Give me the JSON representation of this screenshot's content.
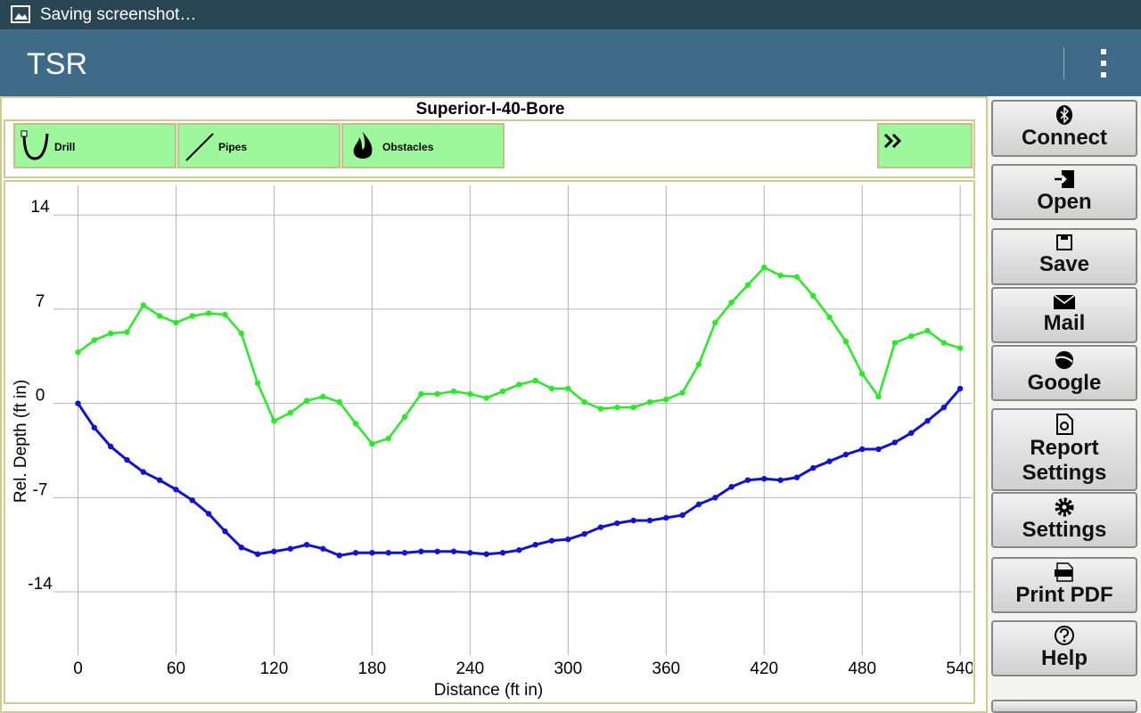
{
  "status_bar": {
    "text": "Saving screenshot…"
  },
  "app_bar": {
    "title": "TSR"
  },
  "project": {
    "title": "Superior-I-40-Bore"
  },
  "toolbar": {
    "buttons": [
      "Drill",
      "Pipes",
      "Obstacles"
    ]
  },
  "side_buttons": [
    "Connect",
    "Open",
    "Save",
    "Mail",
    "Google",
    "Report Settings",
    "Settings",
    "Print PDF",
    "Help"
  ],
  "chart_data": {
    "type": "line",
    "x_label": "Distance (ft in)",
    "y_label": "Rel. Depth (ft in)",
    "x": [
      0,
      10,
      20,
      30,
      40,
      50,
      60,
      70,
      80,
      90,
      100,
      110,
      120,
      130,
      140,
      150,
      160,
      170,
      180,
      190,
      200,
      210,
      220,
      230,
      240,
      250,
      260,
      270,
      280,
      290,
      300,
      310,
      320,
      330,
      340,
      350,
      360,
      370,
      380,
      390,
      400,
      410,
      420,
      430,
      440,
      450,
      460,
      470,
      480,
      490,
      500,
      510,
      520,
      530,
      540
    ],
    "series": [
      {
        "color": "#22ee22",
        "values": [
          3.8,
          4.7,
          5.2,
          5.3,
          7.3,
          6.5,
          6.0,
          6.5,
          6.7,
          6.6,
          5.2,
          1.5,
          -1.3,
          -0.7,
          0.2,
          0.5,
          0.1,
          -1.5,
          -3.0,
          -2.6,
          -1.0,
          0.7,
          0.7,
          0.9,
          0.7,
          0.4,
          0.9,
          1.4,
          1.7,
          1.1,
          1.1,
          0.1,
          -0.4,
          -0.3,
          -0.3,
          0.1,
          0.3,
          0.8,
          2.9,
          6.0,
          7.5,
          8.8,
          10.1,
          9.5,
          9.4,
          8.0,
          6.4,
          4.6,
          2.2,
          0.5,
          4.5,
          5.0,
          5.4,
          4.5,
          4.1
        ]
      },
      {
        "color": "#1111dd",
        "values": [
          0,
          -1.8,
          -3.2,
          -4.2,
          -5.1,
          -5.7,
          -6.4,
          -7.2,
          -8.2,
          -9.5,
          -10.7,
          -11.2,
          -11.0,
          -10.8,
          -10.5,
          -10.8,
          -11.3,
          -11.1,
          -11.1,
          -11.1,
          -11.1,
          -11.0,
          -11.0,
          -11.0,
          -11.1,
          -11.2,
          -11.1,
          -10.9,
          -10.5,
          -10.2,
          -10.1,
          -9.7,
          -9.2,
          -8.9,
          -8.7,
          -8.7,
          -8.5,
          -8.3,
          -7.5,
          -7.0,
          -6.2,
          -5.7,
          -5.6,
          -5.7,
          -5.5,
          -4.8,
          -4.3,
          -3.8,
          -3.4,
          -3.4,
          -2.9,
          -2.2,
          -1.3,
          -0.3,
          1.1
        ]
      }
    ],
    "xlim": [
      -15,
      547
    ],
    "xticks": [
      0,
      60,
      120,
      180,
      240,
      300,
      360,
      420,
      480,
      540
    ],
    "ylim": [
      -18.7,
      16.2
    ],
    "yticks": [
      14,
      7,
      0,
      -7,
      -14
    ],
    "grid": true
  }
}
